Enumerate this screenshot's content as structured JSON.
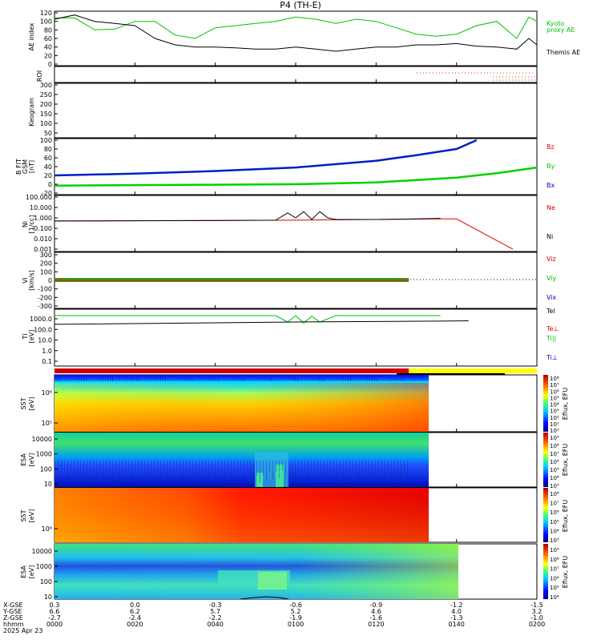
{
  "title": "P4 (TH-E)",
  "colors": {
    "kyoto": "#00c000",
    "themis": "#000000",
    "bz": "#e00000",
    "by": "#00c000",
    "bx": "#0000c0",
    "bar_red": "#d00000",
    "bar_yellow": "#ffff00"
  },
  "panels": {
    "ae": {
      "ylabel": "AE index",
      "ticks": [
        "120",
        "100",
        "80",
        "60",
        "40",
        "20",
        "0"
      ],
      "legend": [
        {
          "text": "Kyoto",
          "color": "#00c000"
        },
        {
          "text": "proxy AE",
          "color": "#00c000"
        },
        {
          "text": "Themis AE",
          "color": "#000000"
        }
      ]
    },
    "roi": {
      "ylabel": "ROI"
    },
    "keogram": {
      "ylabel": "Keogram",
      "ticks": [
        "300",
        "250",
        "200",
        "150",
        "100",
        "50"
      ]
    },
    "bfield": {
      "ylabel": [
        "B FIT",
        "GSM",
        "[nT]"
      ],
      "ticks": [
        "100",
        "80",
        "60",
        "40",
        "20",
        "0",
        "-20"
      ],
      "legend": [
        {
          "text": "Bz",
          "color": "#e00000"
        },
        {
          "text": "By",
          "color": "#00c000"
        },
        {
          "text": "Bx",
          "color": "#0000c0"
        }
      ]
    },
    "density": {
      "ylabel": [
        "Ni",
        "[1/cc]"
      ],
      "ticks": [
        "100.000",
        "10.000",
        "1.000",
        "0.100",
        "0.010",
        "0.001"
      ],
      "legend": [
        {
          "text": "Ne",
          "color": "#e00000"
        },
        {
          "text": "Ni",
          "color": "#000000"
        }
      ]
    },
    "velocity": {
      "ylabel": [
        "Vi",
        "[km/s]"
      ],
      "ticks": [
        "300",
        "200",
        "100",
        "0",
        "-100",
        "-200",
        "-300"
      ],
      "legend": [
        {
          "text": "Viz",
          "color": "#e00000"
        },
        {
          "text": "Viy",
          "color": "#00c000"
        },
        {
          "text": "Vix",
          "color": "#0000c0"
        }
      ]
    },
    "temp": {
      "ylabel": [
        "Ti",
        "[eV]"
      ],
      "ticks": [
        "1000.0",
        "100.0",
        "10.0",
        "1.0",
        "0.1"
      ],
      "legend": [
        {
          "text": "Tel",
          "color": "#000000"
        },
        {
          "text": "Te⊥",
          "color": "#e00000"
        },
        {
          "text": "Ti||",
          "color": "#00c000"
        },
        {
          "text": "Ti⊥",
          "color": "#0000c0"
        }
      ]
    },
    "sst_e": {
      "ylabel": [
        "SST",
        "[eV]"
      ],
      "ticks": [
        "10⁶",
        "10⁵"
      ],
      "cbar_label": "Eflux, EFU",
      "cbar_ticks": [
        "10⁸",
        "10⁷",
        "10⁶",
        "10⁵",
        "10⁴",
        "10³",
        "10²",
        "10¹",
        "10⁰"
      ]
    },
    "esa_e": {
      "ylabel": [
        "ESA",
        "[eV]"
      ],
      "ticks": [
        "10000",
        "1000",
        "100",
        "10"
      ],
      "cbar_label": "Eflux, EFU",
      "cbar_ticks": [
        "10⁹",
        "10⁸",
        "10⁷",
        "10⁶",
        "10⁵",
        "10⁴",
        "10³"
      ]
    },
    "sst_i": {
      "ylabel": [
        "SST",
        "[eV]"
      ],
      "ticks": [
        "10⁶"
      ],
      "cbar_label": "Eflux, EFU",
      "cbar_ticks": [
        "10⁸",
        "10⁷",
        "10⁶",
        "10⁵",
        "10⁴",
        "10³"
      ]
    },
    "esa_i": {
      "ylabel": [
        "ESA",
        "[eV]"
      ],
      "ticks": [
        "10000",
        "1000",
        "100",
        "10"
      ],
      "cbar_label": "Eflux, EFU",
      "cbar_ticks": [
        "10⁹",
        "10⁸",
        "10⁷",
        "10⁶",
        "10⁵",
        "10⁴"
      ]
    }
  },
  "xaxis": {
    "row_labels": [
      "X-GSE",
      "Y-GSE",
      "Z-GSE",
      "hhmm",
      "2025 Apr 23"
    ],
    "columns": [
      {
        "x": "0.3",
        "y": "6.6",
        "z": "-2.7",
        "t": "0000"
      },
      {
        "x": "0.0",
        "y": "6.2",
        "z": "-2.4",
        "t": "0020"
      },
      {
        "x": "-0.3",
        "y": "5.7",
        "z": "-2.2",
        "t": "0040"
      },
      {
        "x": "-0.6",
        "y": "5.2",
        "z": "-1.9",
        "t": "0100"
      },
      {
        "x": "-0.9",
        "y": "4.6",
        "z": "-1.6",
        "t": "0120"
      },
      {
        "x": "-1.2",
        "y": "4.0",
        "z": "-1.3",
        "t": "0140"
      },
      {
        "x": "-1.5",
        "y": "3.2",
        "z": "-1.0",
        "t": "0200"
      }
    ]
  },
  "chart_data": {
    "type": "line",
    "title": "P4 (TH-E)",
    "x_unit": "minutes after 0000 UT, 2025 Apr 23",
    "xlim": [
      0,
      120
    ],
    "series": [
      {
        "name": "Kyoto proxy AE",
        "panel": "ae",
        "x": [
          0,
          5,
          10,
          15,
          20,
          25,
          30,
          35,
          40,
          45,
          50,
          55,
          60,
          65,
          70,
          75,
          80,
          85,
          90,
          95,
          100,
          105,
          110,
          115,
          118,
          120
        ],
        "values": [
          108,
          108,
          80,
          82,
          100,
          100,
          68,
          60,
          85,
          90,
          95,
          100,
          110,
          105,
          95,
          105,
          100,
          85,
          70,
          65,
          70,
          90,
          100,
          60,
          110,
          100
        ]
      },
      {
        "name": "Themis AE",
        "panel": "ae",
        "x": [
          0,
          5,
          10,
          15,
          20,
          25,
          30,
          35,
          40,
          45,
          50,
          55,
          60,
          65,
          70,
          75,
          80,
          85,
          90,
          95,
          100,
          105,
          110,
          115,
          118,
          120
        ],
        "values": [
          105,
          115,
          100,
          95,
          90,
          60,
          45,
          40,
          40,
          38,
          35,
          35,
          40,
          35,
          30,
          35,
          40,
          40,
          45,
          45,
          48,
          42,
          40,
          35,
          60,
          45
        ]
      },
      {
        "name": "Bz",
        "panel": "bfield",
        "x": [],
        "values": []
      },
      {
        "name": "By",
        "panel": "bfield",
        "x": [
          0,
          20,
          40,
          60,
          80,
          100,
          110,
          120
        ],
        "values": [
          -3,
          -2,
          -1,
          0,
          4,
          15,
          25,
          38
        ]
      },
      {
        "name": "Bx",
        "panel": "bfield",
        "x": [
          0,
          20,
          40,
          60,
          80,
          90,
          100,
          105
        ],
        "values": [
          20,
          24,
          30,
          38,
          53,
          66,
          80,
          100
        ]
      },
      {
        "name": "Ni",
        "panel": "density",
        "x": [
          0,
          40,
          55,
          58,
          60,
          62,
          64,
          66,
          68,
          70,
          80,
          90,
          96
        ],
        "values": [
          0.5,
          0.55,
          0.6,
          3,
          1,
          4,
          0.7,
          4,
          1,
          0.7,
          0.7,
          0.8,
          0.9
        ]
      },
      {
        "name": "Ne",
        "panel": "density",
        "x": [
          0,
          60,
          80,
          96,
          100,
          114
        ],
        "values": [
          0.5,
          0.6,
          0.7,
          0.8,
          0.8,
          0.001
        ]
      },
      {
        "name": "Ti||",
        "panel": "temp",
        "x": [
          0,
          55,
          58,
          60,
          62,
          64,
          66,
          70,
          80,
          96
        ],
        "values": [
          2000,
          2000,
          500,
          2000,
          400,
          1800,
          500,
          2000,
          2000,
          2000
        ]
      },
      {
        "name": "Tel",
        "panel": "temp",
        "x": [
          0,
          40,
          60,
          80,
          96,
          103
        ],
        "values": [
          300,
          420,
          500,
          550,
          600,
          650
        ]
      }
    ]
  }
}
